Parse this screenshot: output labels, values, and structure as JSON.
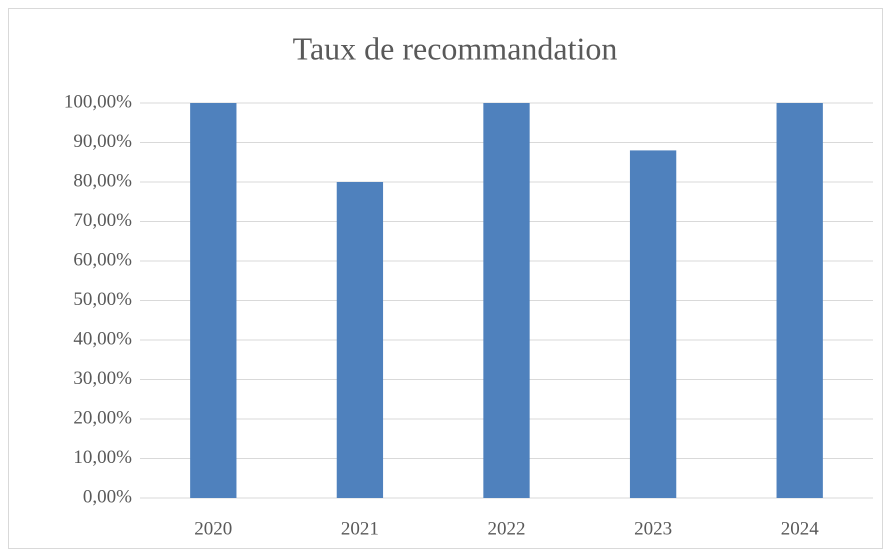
{
  "chart_data": {
    "type": "bar",
    "title": "Taux de recommandation",
    "categories": [
      "2020",
      "2021",
      "2022",
      "2023",
      "2024"
    ],
    "values": [
      100,
      80,
      100,
      88,
      100
    ],
    "color": "#4f81bd",
    "ylim": [
      0,
      100
    ],
    "yticks": [
      {
        "value": 0,
        "label": "0,00%"
      },
      {
        "value": 10,
        "label": "10,00%"
      },
      {
        "value": 20,
        "label": "20,00%"
      },
      {
        "value": 30,
        "label": "30,00%"
      },
      {
        "value": 40,
        "label": "40,00%"
      },
      {
        "value": 50,
        "label": "50,00%"
      },
      {
        "value": 60,
        "label": "60,00%"
      },
      {
        "value": 70,
        "label": "70,00%"
      },
      {
        "value": 80,
        "label": "80,00%"
      },
      {
        "value": 90,
        "label": "90,00%"
      },
      {
        "value": 100,
        "label": "100,00%"
      }
    ],
    "grid": true
  }
}
